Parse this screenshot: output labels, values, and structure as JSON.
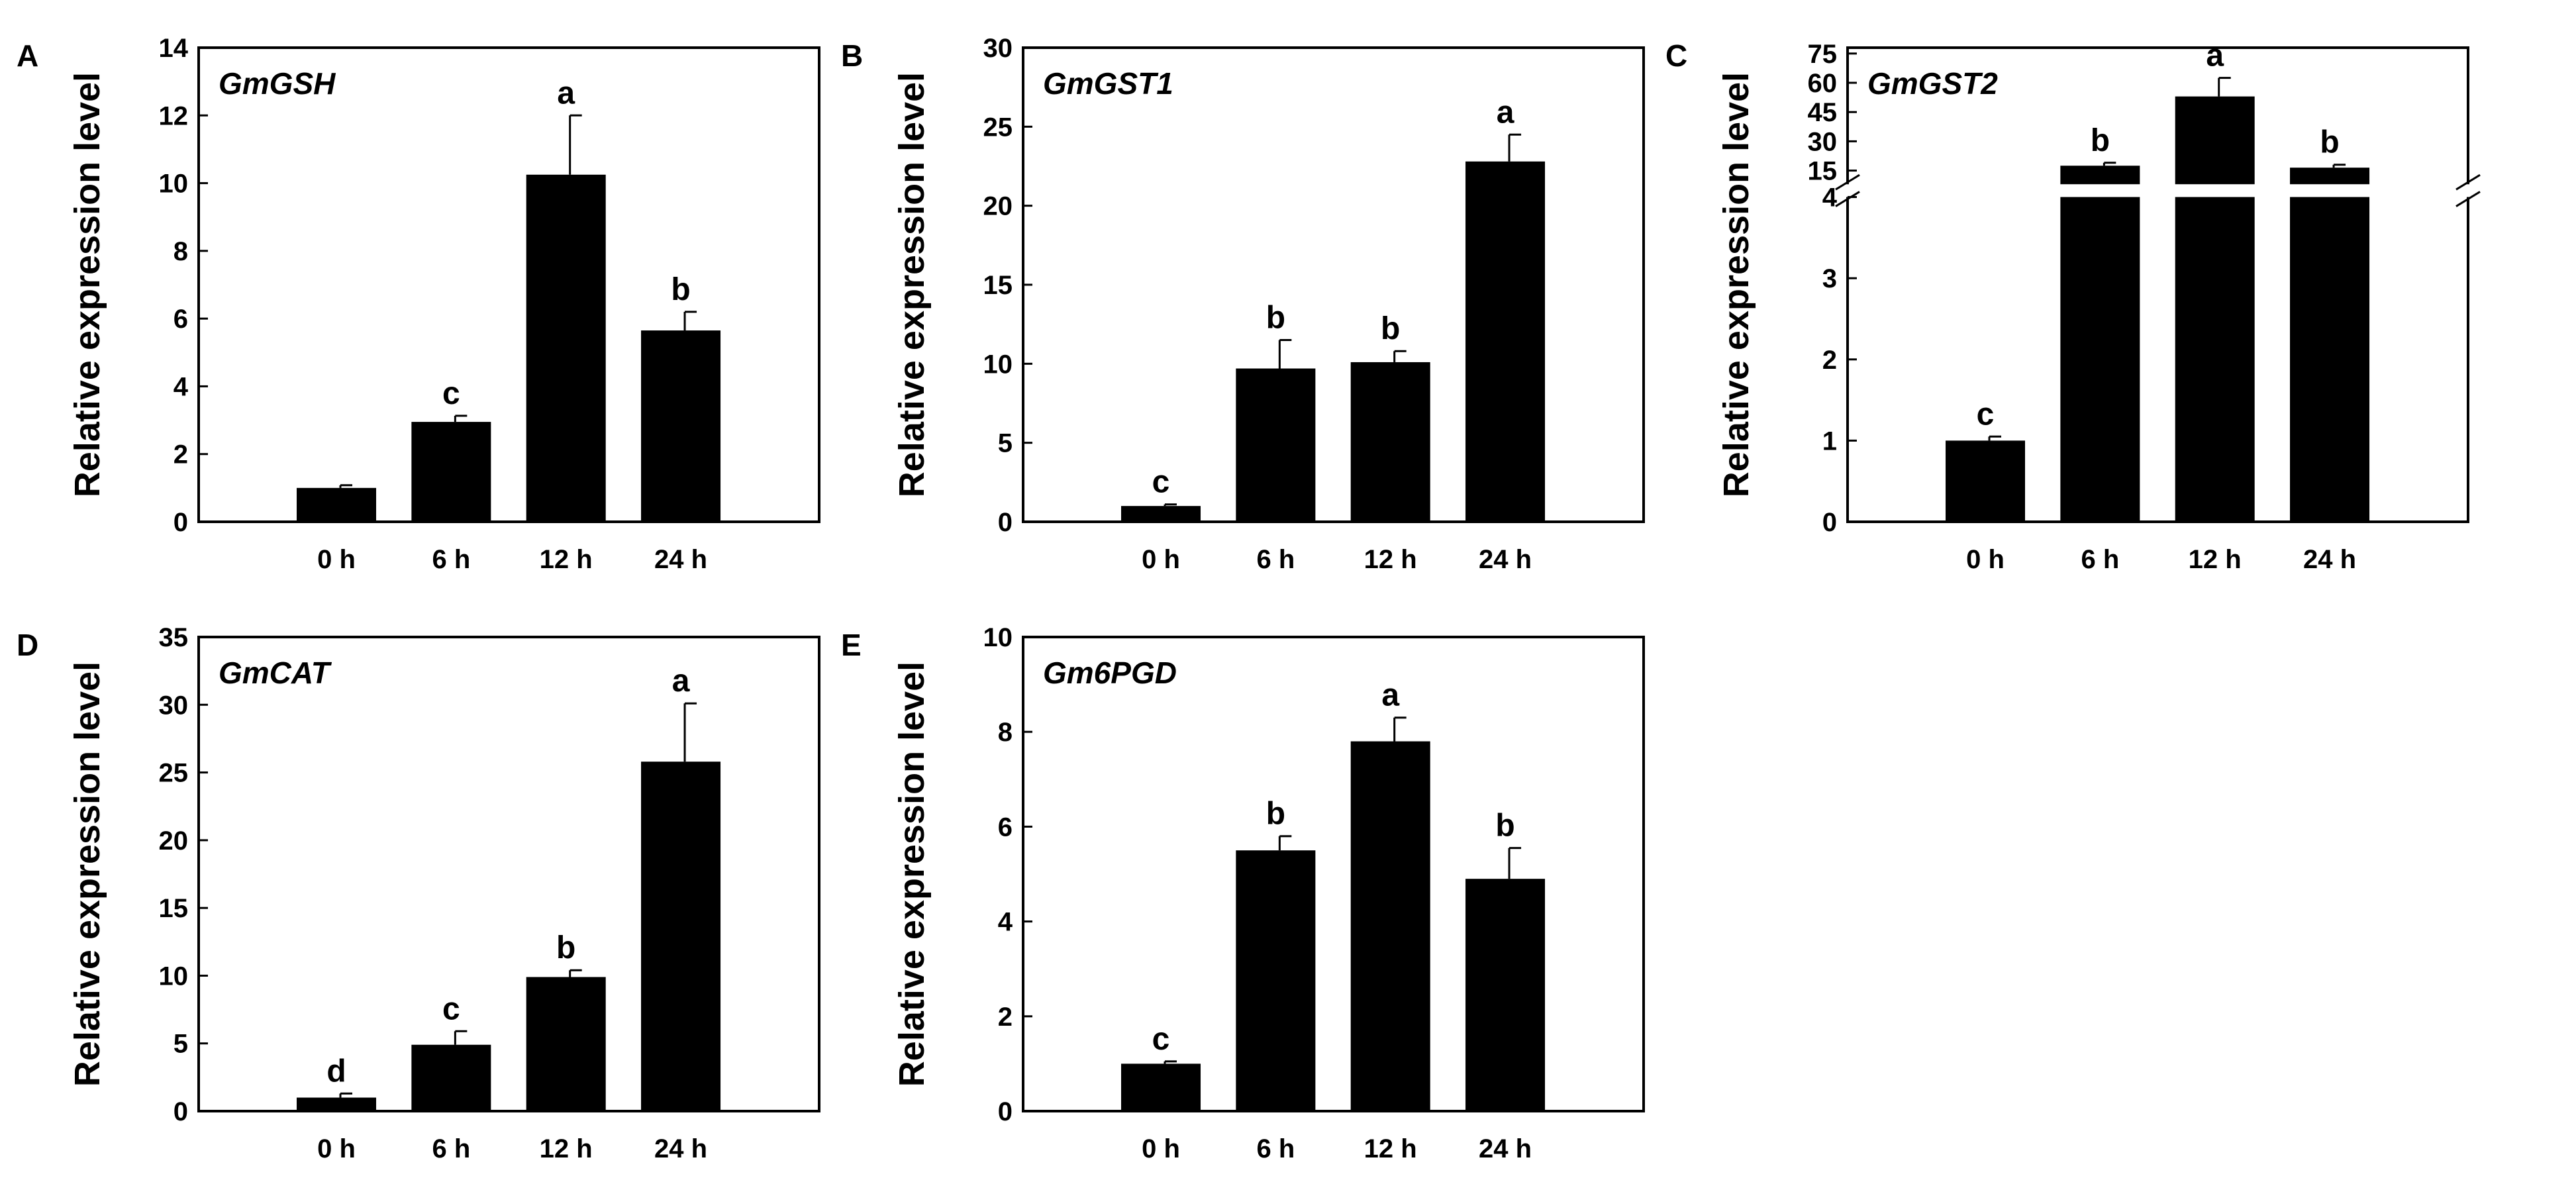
{
  "figure": {
    "background": "#ffffff",
    "bar_color": "#000000"
  },
  "chart_data": [
    {
      "panel": "A",
      "gene": "GmGSH",
      "type": "bar",
      "categories": [
        "0 h",
        "6 h",
        "12 h",
        "24 h"
      ],
      "values": [
        1.0,
        2.95,
        10.25,
        5.65
      ],
      "errors": [
        0.08,
        0.18,
        1.75,
        0.55
      ],
      "significance": [
        "",
        "c",
        "a",
        "b"
      ],
      "ylabel": "Relative expression level",
      "ylim": [
        0,
        14
      ],
      "yticks": [
        0,
        2,
        4,
        6,
        8,
        10,
        12,
        14
      ]
    },
    {
      "panel": "B",
      "gene": "GmGST1",
      "type": "bar",
      "categories": [
        "0 h",
        "6 h",
        "12 h",
        "24 h"
      ],
      "values": [
        1.0,
        9.7,
        10.1,
        22.8
      ],
      "errors": [
        0.1,
        1.8,
        0.7,
        1.7
      ],
      "significance": [
        "c",
        "b",
        "b",
        "a"
      ],
      "ylabel": "Relative expression level",
      "ylim": [
        0,
        30
      ],
      "yticks": [
        0,
        5,
        10,
        15,
        20,
        25,
        30
      ]
    },
    {
      "panel": "C",
      "gene": "GmGST2",
      "type": "bar",
      "categories": [
        "0 h",
        "6 h",
        "12 h",
        "24 h"
      ],
      "values": [
        1.0,
        17.5,
        53.0,
        16.5
      ],
      "errors": [
        0.05,
        1.5,
        9.5,
        1.5
      ],
      "significance": [
        "c",
        "b",
        "a",
        "b"
      ],
      "ylabel": "Relative expression level",
      "axis_break": {
        "lower": [
          0,
          4
        ],
        "upper": [
          8,
          78
        ]
      },
      "yticks_lower": [
        0,
        1,
        2,
        3,
        4
      ],
      "yticks_upper": [
        15,
        30,
        45,
        60,
        75
      ]
    },
    {
      "panel": "D",
      "gene": "GmCAT",
      "type": "bar",
      "categories": [
        "0 h",
        "6 h",
        "12 h",
        "24 h"
      ],
      "values": [
        1.0,
        4.9,
        9.9,
        25.8
      ],
      "errors": [
        0.3,
        1.0,
        0.5,
        4.3
      ],
      "significance": [
        "d",
        "c",
        "b",
        "a"
      ],
      "ylabel": "Relative expression level",
      "ylim": [
        0,
        35
      ],
      "yticks": [
        0,
        5,
        10,
        15,
        20,
        25,
        30,
        35
      ]
    },
    {
      "panel": "E",
      "gene": "Gm6PGD",
      "type": "bar",
      "categories": [
        "0 h",
        "6 h",
        "12 h",
        "24 h"
      ],
      "values": [
        1.0,
        5.5,
        7.8,
        4.9
      ],
      "errors": [
        0.05,
        0.3,
        0.5,
        0.65
      ],
      "significance": [
        "c",
        "b",
        "a",
        "b"
      ],
      "ylabel": "Relative expression level",
      "ylim": [
        0,
        10
      ],
      "yticks": [
        0,
        2,
        4,
        6,
        8,
        10
      ]
    }
  ]
}
